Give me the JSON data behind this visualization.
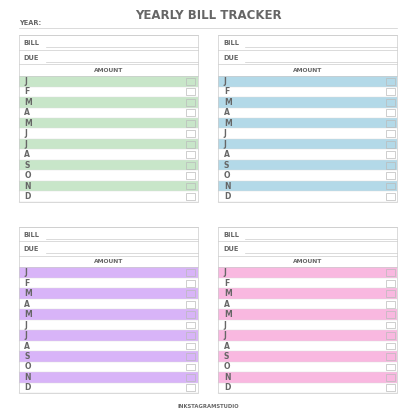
{
  "title": "YEARLY BILL TRACKER",
  "title_fontsize": 8.5,
  "watermark": "INKSTAGRAMSTUDIO",
  "months": [
    "J",
    "F",
    "M",
    "A",
    "M",
    "J",
    "J",
    "A",
    "S",
    "O",
    "N",
    "D"
  ],
  "panel_colors": [
    "#c8e6c9",
    "#b3d9e8",
    "#d8b4f8",
    "#f9b8e0"
  ],
  "background_color": "#ffffff",
  "text_color": "#666666",
  "label_fontsize": 5.5,
  "header_fontsize": 4.8,
  "amount_fontsize": 4.3,
  "watermark_fontsize": 3.8
}
